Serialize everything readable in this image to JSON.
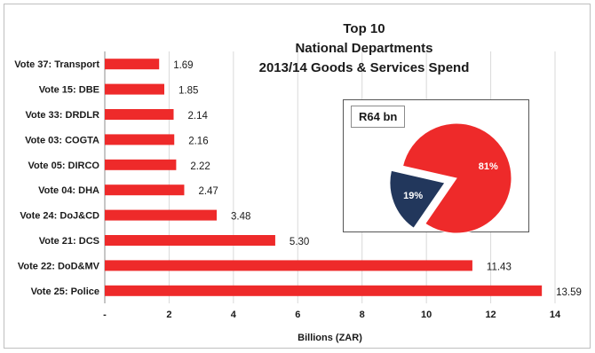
{
  "chart_data": [
    {
      "type": "bar",
      "orientation": "horizontal",
      "title": "Top 10",
      "subtitle": [
        "National Departments",
        "2013/14 Goods & Services Spend"
      ],
      "categories": [
        "Vote 37: Transport",
        "Vote 15: DBE",
        "Vote 33: DRDLR",
        "Vote 03: COGTA",
        "Vote 05: DIRCO",
        "Vote 04: DHA",
        "Vote 24: DoJ&CD",
        "Vote 21: DCS",
        "Vote 22: DoD&MV",
        "Vote 25: Police"
      ],
      "values": [
        1.69,
        1.85,
        2.14,
        2.16,
        2.22,
        2.47,
        3.48,
        5.3,
        11.43,
        13.59
      ],
      "value_labels": [
        "1.69",
        "1.85",
        "2.14",
        "2.16",
        "2.22",
        "2.47",
        "3.48",
        "5.30",
        "11.43",
        "13.59"
      ],
      "xlabel": "Billions  (ZAR)",
      "xlim": [
        0,
        14
      ],
      "xticks": [
        0,
        2,
        4,
        6,
        8,
        10,
        12,
        14
      ],
      "xtick_labels": [
        "-",
        "2",
        "4",
        "6",
        "8",
        "10",
        "12",
        "14"
      ],
      "grid": "vertical",
      "bar_color": "#ee2a2a"
    },
    {
      "type": "pie",
      "label": "R64 bn",
      "slices": [
        {
          "label": "81%",
          "value": 81,
          "color": "#ee2a2a",
          "exploded": false
        },
        {
          "label": "19%",
          "value": 19,
          "color": "#22375c",
          "exploded": true
        }
      ]
    }
  ]
}
